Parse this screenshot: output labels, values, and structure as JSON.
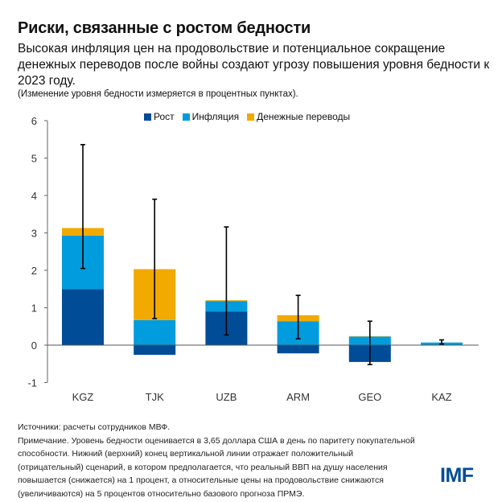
{
  "header": {
    "title": "Риски, связанные с ростом бедности",
    "subtitle": "Высокая инфляция цен на продовольствие и потенциальное сокращение денежных переводов после войны создают угрозу повышения уровня бедности к 2023 году.",
    "unit_note": "(Изменение уровня бедности измеряется в процентных пунктах)."
  },
  "chart_data": {
    "type": "bar",
    "stacked": true,
    "categories": [
      "KGZ",
      "TJK",
      "UZB",
      "ARM",
      "GEO",
      "KAZ"
    ],
    "series": [
      {
        "name": "Рост",
        "color": "#004C97",
        "values": [
          1.5,
          -0.26,
          0.9,
          -0.22,
          -0.45,
          0.01
        ]
      },
      {
        "name": "Инфляция",
        "color": "#009CDE",
        "values": [
          1.43,
          0.67,
          0.28,
          0.64,
          0.23,
          0.06
        ]
      },
      {
        "name": "Денежные переводы",
        "color": "#F2A900",
        "values": [
          0.2,
          1.36,
          0.02,
          0.16,
          0.01,
          0.0
        ]
      }
    ],
    "error_bars": {
      "low": [
        2.05,
        0.71,
        0.27,
        0.17,
        -0.52,
        0.03
      ],
      "high": [
        5.36,
        3.9,
        3.16,
        1.33,
        0.64,
        0.14
      ]
    },
    "ylim": [
      -1,
      6
    ],
    "yticks": [
      "-1",
      "0",
      "1",
      "2",
      "3",
      "4",
      "5",
      "6"
    ],
    "xlabel": "",
    "ylabel": "",
    "grid": false,
    "legend_position": "top"
  },
  "footer": {
    "notes": [
      "Источники: расчеты сотрудников  МВФ.",
      "Примечание. Уровень бедности оценивается в 3,65 доллара США в день по паритету покупательной",
      "способности. Нижний (верхний) конец вертикальной линии отражает положительный",
      "(отрицательный) сценарий, в котором предполагается, что реальный ВВП на душу населения",
      "повышается (снижается) на 1 процент, а относительные цены на продовольствие снижаются",
      "(увеличиваются) на 5 процентов относительно базового прогноза ПРМЭ."
    ],
    "logo": "IMF"
  }
}
